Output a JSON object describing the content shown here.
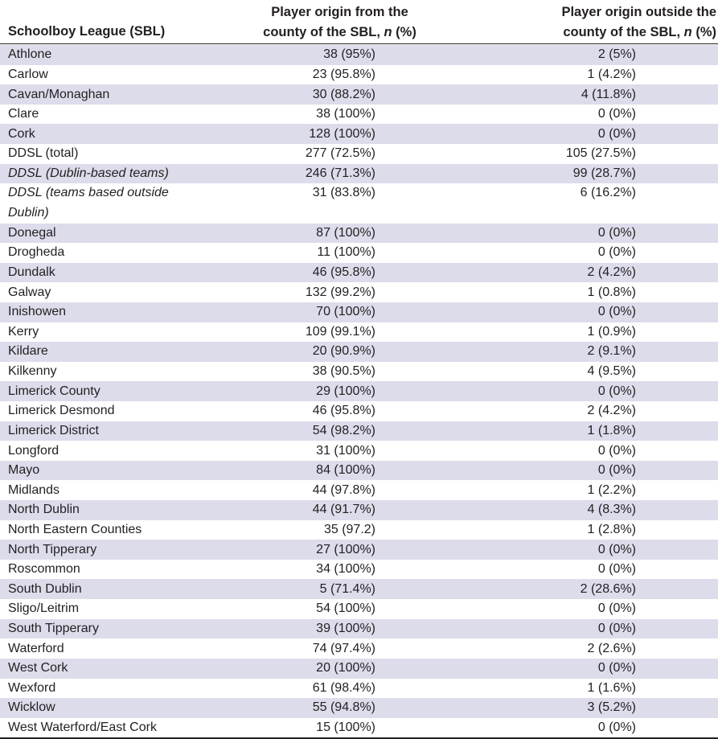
{
  "header": {
    "col1": "Schoolboy League (SBL)",
    "col2_line1": "Player origin from the",
    "col2_line2": "county of the SBL, ",
    "col3_line1": "Player origin outside the",
    "col3_line2": "county of the SBL, ",
    "n_symbol": "n",
    "pct_suffix": " (%)"
  },
  "rows": [
    {
      "league": "Athlone",
      "inside": "38 (95%)",
      "outside": "2 (5%)"
    },
    {
      "league": "Carlow",
      "inside": "23 (95.8%)",
      "outside": "1 (4.2%)"
    },
    {
      "league": "Cavan/Monaghan",
      "inside": "30 (88.2%)",
      "outside": "4 (11.8%)"
    },
    {
      "league": "Clare",
      "inside": "38 (100%)",
      "outside": "0 (0%)"
    },
    {
      "league": "Cork",
      "inside": "128 (100%)",
      "outside": "0 (0%)"
    },
    {
      "league": "DDSL (total)",
      "inside": "277 (72.5%)",
      "outside": "105 (27.5%)"
    },
    {
      "league": "DDSL (Dublin-based teams)",
      "inside": "246 (71.3%)",
      "outside": "99 (28.7%)",
      "italic": true
    },
    {
      "league": "DDSL (teams based outside Dublin)",
      "inside": "31 (83.8%)",
      "outside": "6 (16.2%)",
      "italic": true,
      "double": true
    },
    {
      "league": "Donegal",
      "inside": "87 (100%)",
      "outside": "0 (0%)"
    },
    {
      "league": "Drogheda",
      "inside": "11 (100%)",
      "outside": "0 (0%)"
    },
    {
      "league": "Dundalk",
      "inside": "46 (95.8%)",
      "outside": "2 (4.2%)"
    },
    {
      "league": "Galway",
      "inside": "132 (99.2%)",
      "outside": "1 (0.8%)"
    },
    {
      "league": "Inishowen",
      "inside": "70 (100%)",
      "outside": "0 (0%)"
    },
    {
      "league": "Kerry",
      "inside": "109 (99.1%)",
      "outside": "1 (0.9%)"
    },
    {
      "league": "Kildare",
      "inside": "20 (90.9%)",
      "outside": "2 (9.1%)"
    },
    {
      "league": "Kilkenny",
      "inside": "38 (90.5%)",
      "outside": "4 (9.5%)"
    },
    {
      "league": "Limerick County",
      "inside": "29 (100%)",
      "outside": "0 (0%)"
    },
    {
      "league": "Limerick Desmond",
      "inside": "46 (95.8%)",
      "outside": "2 (4.2%)"
    },
    {
      "league": "Limerick District",
      "inside": "54 (98.2%)",
      "outside": "1 (1.8%)"
    },
    {
      "league": "Longford",
      "inside": "31 (100%)",
      "outside": "0 (0%)"
    },
    {
      "league": "Mayo",
      "inside": "84 (100%)",
      "outside": "0 (0%)"
    },
    {
      "league": "Midlands",
      "inside": "44 (97.8%)",
      "outside": "1 (2.2%)"
    },
    {
      "league": "North Dublin",
      "inside": "44 (91.7%)",
      "outside": "4 (8.3%)"
    },
    {
      "league": "North Eastern Counties",
      "inside": "35 (97.2)",
      "outside": "1 (2.8%)"
    },
    {
      "league": "North Tipperary",
      "inside": "27 (100%)",
      "outside": "0 (0%)"
    },
    {
      "league": "Roscommon",
      "inside": "34 (100%)",
      "outside": "0 (0%)"
    },
    {
      "league": "South Dublin",
      "inside": "5 (71.4%)",
      "outside": "2 (28.6%)"
    },
    {
      "league": "Sligo/Leitrim",
      "inside": "54 (100%)",
      "outside": "0 (0%)"
    },
    {
      "league": "South Tipperary",
      "inside": "39 (100%)",
      "outside": "0 (0%)"
    },
    {
      "league": "Waterford",
      "inside": "74 (97.4%)",
      "outside": "2 (2.6%)"
    },
    {
      "league": "West Cork",
      "inside": "20 (100%)",
      "outside": "0 (0%)"
    },
    {
      "league": "Wexford",
      "inside": "61 (98.4%)",
      "outside": "1 (1.6%)"
    },
    {
      "league": "Wicklow",
      "inside": "55 (94.8%)",
      "outside": "3 (5.2%)"
    },
    {
      "league": "West Waterford/East Cork",
      "inside": "15 (100%)",
      "outside": "0 (0%)"
    }
  ]
}
